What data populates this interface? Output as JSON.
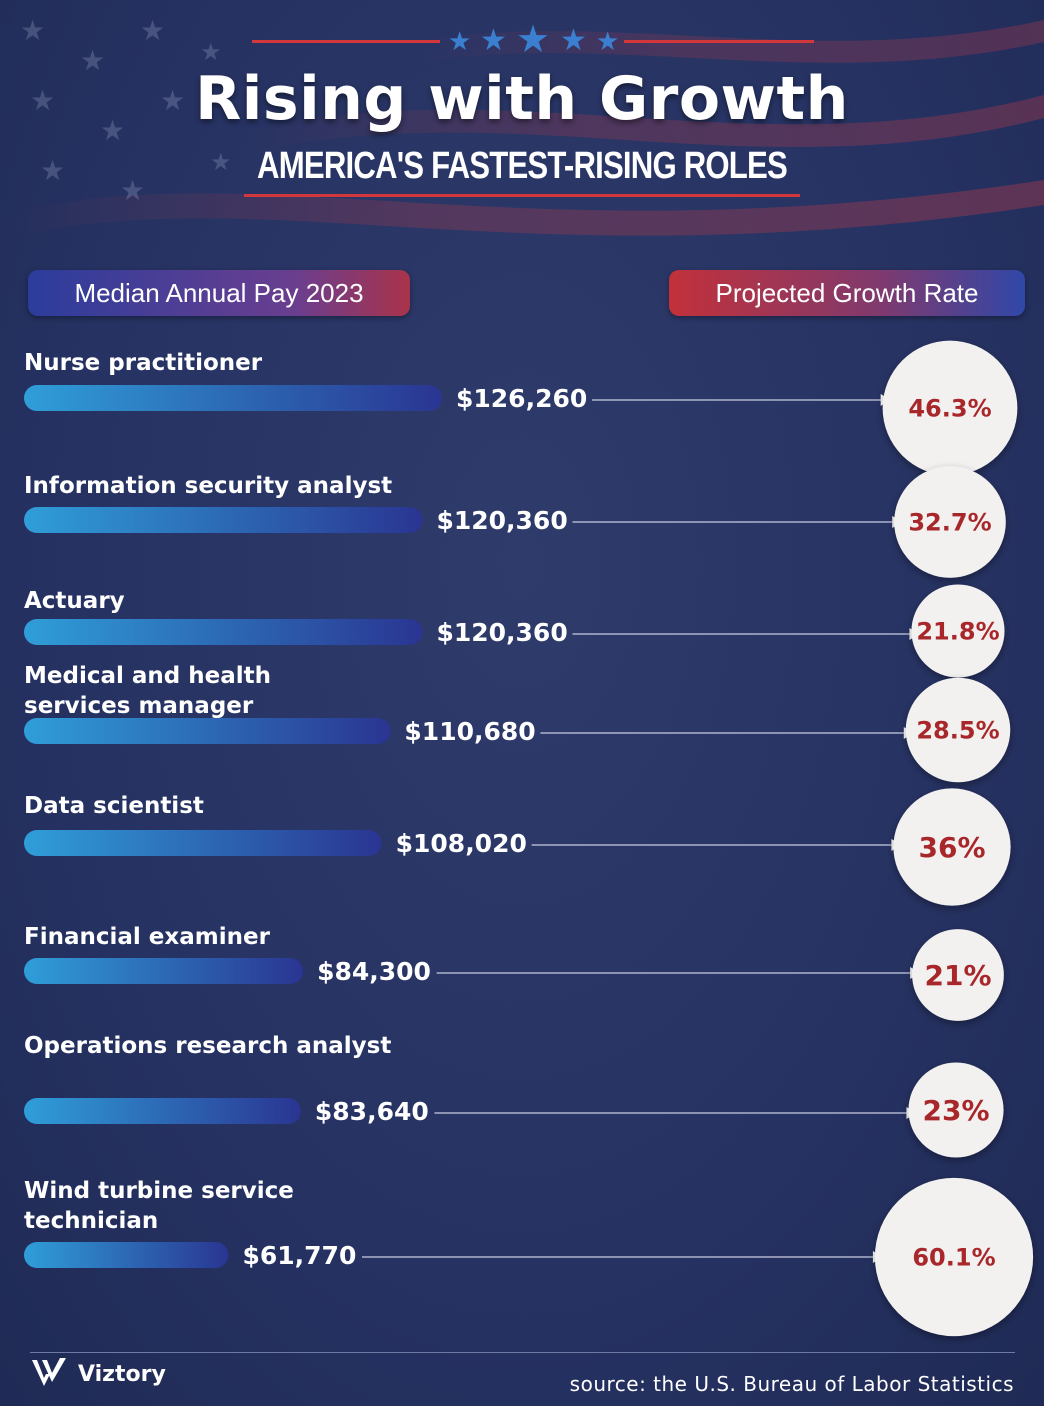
{
  "header": {
    "title": "Rising with Growth",
    "subtitle": "AMERICA'S FASTEST-RISING ROLES"
  },
  "legend": {
    "pay_label": "Median Annual Pay 2023",
    "growth_label": "Projected Growth Rate"
  },
  "chart_data": {
    "type": "bar",
    "title": "Rising with Growth",
    "subtitle": "AMERICA'S FASTEST-RISING ROLES",
    "categories": [
      "Nurse practitioner",
      "Information security analyst",
      "Actuary",
      "Medical and health services manager",
      "Data scientist",
      "Financial examiner",
      "Operations research analyst",
      "Wind turbine service technician"
    ],
    "series": [
      {
        "name": "Median Annual Pay 2023",
        "values": [
          126260,
          120360,
          120360,
          110680,
          108020,
          84300,
          83640,
          61770
        ],
        "labels": [
          "$126,260",
          "$120,360",
          "$120,360",
          "$110,680",
          "$108,020",
          "$84,300",
          "$83,640",
          "$61,770"
        ]
      },
      {
        "name": "Projected Growth Rate",
        "values": [
          46.3,
          32.7,
          21.8,
          28.5,
          36,
          21,
          23,
          60.1
        ],
        "labels": [
          "46.3%",
          "32.7%",
          "21.8%",
          "28.5%",
          "36%",
          "21%",
          "23%",
          "60.1%"
        ]
      }
    ],
    "orientation": "horizontal",
    "grid": false
  },
  "footer": {
    "brand": "Viztory",
    "source": "source: the U.S. Bureau of Labor Statistics"
  },
  "colors": {
    "background": "#283460",
    "bar_start": "#2f9ed9",
    "bar_end": "#2a3592",
    "accent_red": "#d2373c",
    "rate_text": "#a8272a"
  }
}
